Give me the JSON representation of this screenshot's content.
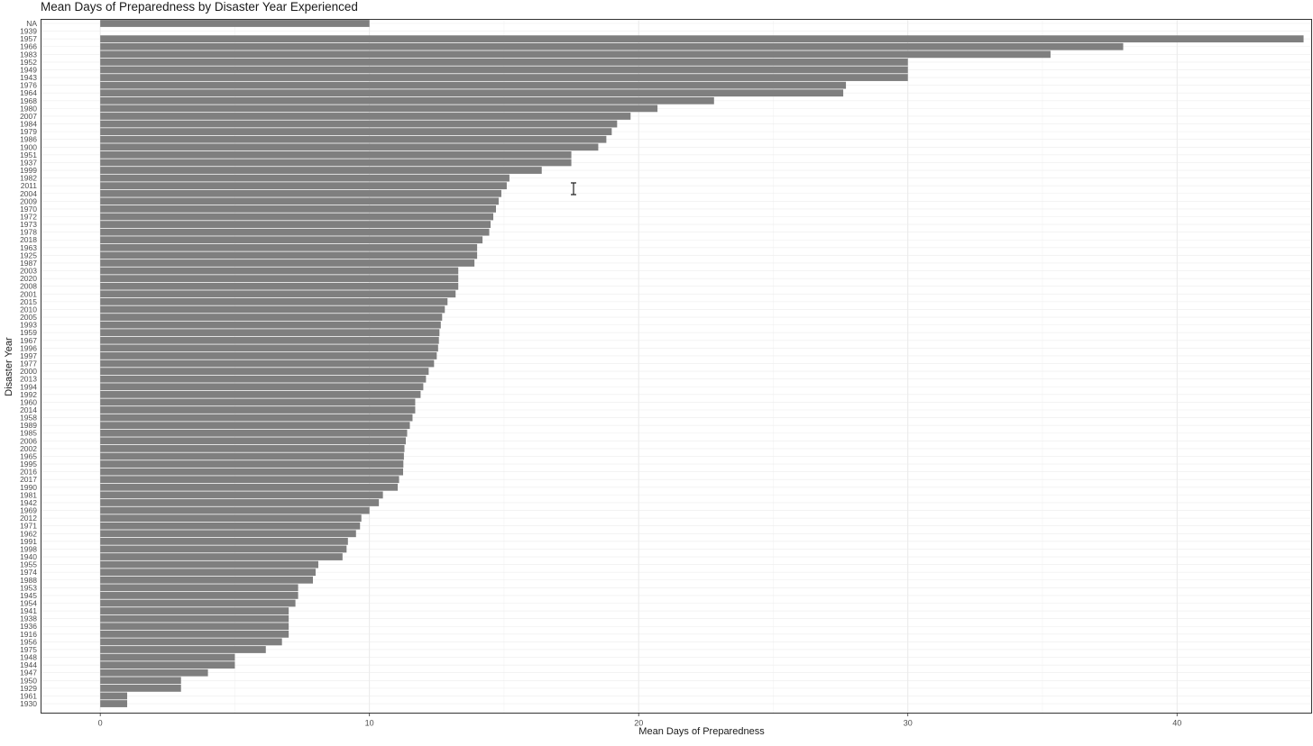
{
  "chart_data": {
    "type": "bar",
    "orientation": "horizontal",
    "title": "Mean Days of Preparedness by Disaster Year Experienced",
    "xlabel": "Mean Days of Preparedness",
    "ylabel": "Disaster Year",
    "xlim": [
      -2.2,
      45
    ],
    "x_ticks": [
      0,
      10,
      20,
      30,
      40
    ],
    "grid": true,
    "bar_color": "#7f7f7f",
    "categories": [
      "NA",
      "1939",
      "1957",
      "1966",
      "1983",
      "1952",
      "1949",
      "1943",
      "1976",
      "1964",
      "1968",
      "1980",
      "2007",
      "1984",
      "1979",
      "1986",
      "1900",
      "1951",
      "1937",
      "1999",
      "1982",
      "2011",
      "2004",
      "2009",
      "1970",
      "1972",
      "1973",
      "1978",
      "2018",
      "1963",
      "1925",
      "1987",
      "2003",
      "2020",
      "2008",
      "2001",
      "2015",
      "2010",
      "2005",
      "1993",
      "1959",
      "1967",
      "1996",
      "1997",
      "1977",
      "2000",
      "2013",
      "1994",
      "1992",
      "1960",
      "2014",
      "1958",
      "1989",
      "1985",
      "2006",
      "2002",
      "1965",
      "1995",
      "2016",
      "2017",
      "1990",
      "1981",
      "1942",
      "1969",
      "2012",
      "1971",
      "1962",
      "1991",
      "1998",
      "1940",
      "1955",
      "1974",
      "1988",
      "1953",
      "1945",
      "1954",
      "1941",
      "1938",
      "1936",
      "1916",
      "1956",
      "1975",
      "1948",
      "1944",
      "1947",
      "1950",
      "1929",
      "1961",
      "1930"
    ],
    "values": [
      10.0,
      null,
      44.7,
      38.0,
      35.3,
      30.0,
      30.0,
      30.0,
      27.7,
      27.6,
      22.8,
      20.7,
      19.7,
      19.2,
      19.0,
      18.8,
      18.5,
      17.5,
      17.5,
      16.4,
      15.2,
      15.1,
      14.9,
      14.8,
      14.7,
      14.6,
      14.5,
      14.45,
      14.2,
      14.0,
      14.0,
      13.9,
      13.3,
      13.3,
      13.3,
      13.2,
      12.9,
      12.8,
      12.7,
      12.65,
      12.6,
      12.58,
      12.55,
      12.5,
      12.4,
      12.2,
      12.1,
      12.0,
      11.9,
      11.7,
      11.7,
      11.6,
      11.5,
      11.4,
      11.35,
      11.3,
      11.28,
      11.26,
      11.25,
      11.1,
      11.05,
      10.5,
      10.35,
      10.0,
      9.7,
      9.65,
      9.5,
      9.2,
      9.15,
      9.0,
      8.1,
      8.0,
      7.9,
      7.35,
      7.35,
      7.25,
      7.0,
      7.0,
      7.0,
      7.0,
      6.75,
      6.15,
      5.0,
      5.0,
      4.0,
      3.0,
      3.0,
      1.0,
      1.0
    ]
  }
}
